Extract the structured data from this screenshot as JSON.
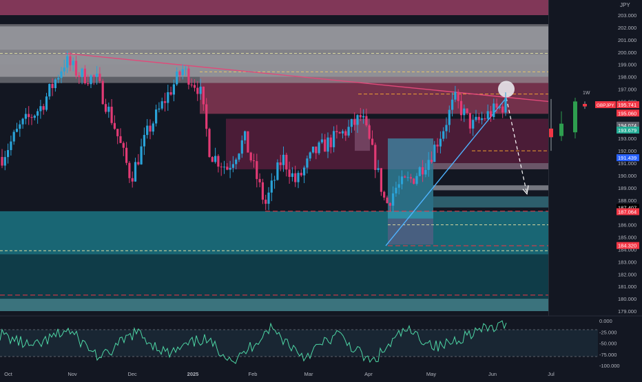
{
  "chart_data": [
    {
      "type": "candlestick",
      "symbol": "GBPJPY",
      "currency": "JPY",
      "timeframe": "1D",
      "ylim": [
        178.6,
        203.9
      ],
      "x_tick_labels": [
        "Oct",
        "Nov",
        "Dec",
        "2025",
        "Feb",
        "Mar",
        "Apr",
        "May",
        "Jun",
        "Jul"
      ],
      "y_tick_labels": [
        "203.000",
        "202.000",
        "201.000",
        "200.000",
        "199.000",
        "198.000",
        "197.000",
        "196.000",
        "195.000",
        "194.000",
        "193.000",
        "192.000",
        "191.000",
        "190.000",
        "189.000",
        "188.000",
        "187.000",
        "186.000",
        "185.000",
        "184.000",
        "183.000",
        "182.000",
        "181.000",
        "180.000",
        "179.000"
      ],
      "approx_closes": [
        {
          "date": "Oct",
          "close": 191.5
        },
        {
          "date": "Nov (early)",
          "close": 199.0
        },
        {
          "date": "Dec (mid)",
          "close": 189.5
        },
        {
          "date": "2025 (early Jan)",
          "close": 198.0
        },
        {
          "date": "Feb (early)",
          "close": 187.2
        },
        {
          "date": "Mar",
          "close": 191.0
        },
        {
          "date": "Apr (early)",
          "close": 194.5
        },
        {
          "date": "Apr (mid)",
          "close": 186.5
        },
        {
          "date": "May (mid)",
          "close": 196.0
        },
        {
          "date": "Jun (early)",
          "close": 195.7
        }
      ],
      "price_labels": [
        {
          "text": "GBPJPY",
          "value": 195.741,
          "color": "#f23645"
        },
        {
          "text": "195.741",
          "value": 195.741,
          "color": "#f23645"
        },
        {
          "text": "195.060",
          "value": 195.06,
          "color": "#f23645"
        },
        {
          "text": "194.074",
          "value": 194.074,
          "color": "#5d606b"
        },
        {
          "text": "193.679",
          "value": 193.679,
          "color": "#22ab94"
        },
        {
          "text": "191.439",
          "value": 191.439,
          "color": "#2962ff"
        },
        {
          "text": "187.407",
          "value": 187.407,
          "color": "#000000"
        },
        {
          "text": "187.064",
          "value": 187.064,
          "color": "#f23645"
        },
        {
          "text": "184.320",
          "value": 184.32,
          "color": "#f23645"
        }
      ],
      "weekly_label": "1W",
      "weekly_candles": [
        {
          "o": 193.8,
          "h": 196.2,
          "l": 192.0,
          "c": 193.1
        },
        {
          "o": 193.2,
          "h": 195.2,
          "l": 192.8,
          "c": 194.2
        },
        {
          "o": 193.5,
          "h": 196.3,
          "l": 193.0,
          "c": 196.0
        },
        {
          "o": 195.8,
          "h": 196.0,
          "l": 195.4,
          "c": 195.6
        }
      ],
      "zones": [
        {
          "name": "premium",
          "from": 203.0,
          "to": 204.3,
          "color": "#8e3b5e"
        },
        {
          "name": "supply-grey",
          "from": 198.0,
          "to": 202.1,
          "color": "#a8a8ad"
        },
        {
          "name": "supply-band",
          "from": 197.5,
          "to": 198.0,
          "color": "#e06d8e"
        },
        {
          "name": "order-block-top",
          "from": 195.0,
          "to": 197.5,
          "color": "#c2476e"
        },
        {
          "name": "order-block-mid",
          "from": 190.5,
          "to": 194.6,
          "color": "#7a2148"
        },
        {
          "name": "demand",
          "from": 183.6,
          "to": 187.1,
          "color": "#1b7a8a"
        },
        {
          "name": "discount",
          "from": 179.0,
          "to": 183.6,
          "color": "#0f4a55"
        }
      ],
      "projection": {
        "from": 196.3,
        "to": 188.5,
        "style": "dashed"
      },
      "levels": [
        199.9,
        198.4,
        196.6,
        192.0,
        187.1,
        186.0,
        184.3,
        183.9,
        180.3
      ]
    },
    {
      "type": "line",
      "name": "oscillator",
      "ylim": [
        -105,
        5
      ],
      "y_tick_labels": [
        "0.000",
        "-25.000",
        "-50.000",
        "-75.000",
        "-100.000"
      ],
      "levels": [
        -20,
        -80
      ],
      "approx_values": [
        -30,
        -60,
        -20,
        -85,
        -25,
        -75,
        -40,
        -90,
        -15,
        -80,
        -30,
        -95,
        -20,
        -60,
        -25,
        -10
      ]
    }
  ]
}
